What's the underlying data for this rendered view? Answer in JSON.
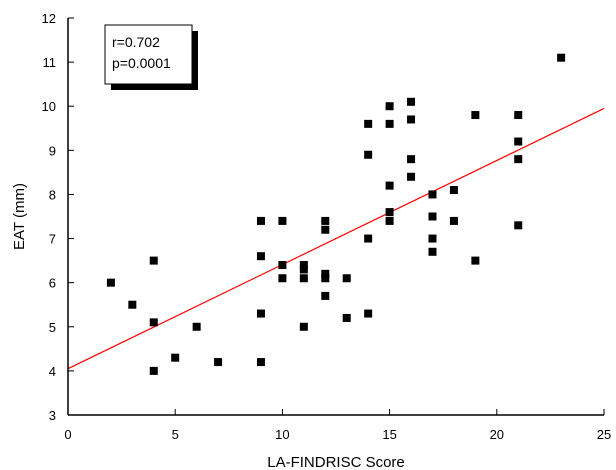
{
  "chart_data": {
    "type": "scatter",
    "xlabel": "LA-FINDRISC Score",
    "ylabel": "EAT (mm)",
    "xlim": [
      0,
      25
    ],
    "ylim": [
      3,
      12
    ],
    "x_ticks": [
      0,
      5,
      10,
      15,
      20,
      25
    ],
    "y_ticks": [
      3,
      4,
      5,
      6,
      7,
      8,
      9,
      10,
      11,
      12
    ],
    "grid": false,
    "annotation": {
      "lines": [
        "r=0.702",
        "p=0.0001"
      ],
      "placement": "top-left"
    },
    "regression_line": {
      "x": [
        0,
        25
      ],
      "y": [
        4.05,
        9.95
      ],
      "color": "#ff0000"
    },
    "marker_color": "#000000",
    "points": [
      {
        "x": 2,
        "y": 6.0
      },
      {
        "x": 3,
        "y": 5.5
      },
      {
        "x": 4,
        "y": 6.5
      },
      {
        "x": 4,
        "y": 5.1
      },
      {
        "x": 4,
        "y": 4.0
      },
      {
        "x": 5,
        "y": 4.3
      },
      {
        "x": 6,
        "y": 5.0
      },
      {
        "x": 7,
        "y": 4.2
      },
      {
        "x": 9,
        "y": 7.4
      },
      {
        "x": 9,
        "y": 6.6
      },
      {
        "x": 9,
        "y": 5.3
      },
      {
        "x": 9,
        "y": 4.2
      },
      {
        "x": 10,
        "y": 7.4
      },
      {
        "x": 10,
        "y": 6.4
      },
      {
        "x": 10,
        "y": 6.1
      },
      {
        "x": 11,
        "y": 6.4
      },
      {
        "x": 11,
        "y": 6.3
      },
      {
        "x": 11,
        "y": 6.1
      },
      {
        "x": 11,
        "y": 5.0
      },
      {
        "x": 12,
        "y": 7.4
      },
      {
        "x": 12,
        "y": 7.2
      },
      {
        "x": 12,
        "y": 6.2
      },
      {
        "x": 12,
        "y": 6.1
      },
      {
        "x": 12,
        "y": 5.7
      },
      {
        "x": 13,
        "y": 6.1
      },
      {
        "x": 13,
        "y": 5.2
      },
      {
        "x": 14,
        "y": 9.6
      },
      {
        "x": 14,
        "y": 8.9
      },
      {
        "x": 14,
        "y": 7.0
      },
      {
        "x": 14,
        "y": 5.3
      },
      {
        "x": 15,
        "y": 10.0
      },
      {
        "x": 15,
        "y": 9.6
      },
      {
        "x": 15,
        "y": 8.2
      },
      {
        "x": 15,
        "y": 7.6
      },
      {
        "x": 15,
        "y": 7.4
      },
      {
        "x": 16,
        "y": 10.1
      },
      {
        "x": 16,
        "y": 9.7
      },
      {
        "x": 16,
        "y": 8.8
      },
      {
        "x": 16,
        "y": 8.4
      },
      {
        "x": 17,
        "y": 8.0
      },
      {
        "x": 17,
        "y": 7.5
      },
      {
        "x": 17,
        "y": 7.0
      },
      {
        "x": 17,
        "y": 6.7
      },
      {
        "x": 18,
        "y": 8.1
      },
      {
        "x": 18,
        "y": 7.4
      },
      {
        "x": 19,
        "y": 9.8
      },
      {
        "x": 19,
        "y": 6.5
      },
      {
        "x": 21,
        "y": 9.8
      },
      {
        "x": 21,
        "y": 9.2
      },
      {
        "x": 21,
        "y": 8.8
      },
      {
        "x": 21,
        "y": 7.3
      },
      {
        "x": 23,
        "y": 11.1
      }
    ]
  }
}
